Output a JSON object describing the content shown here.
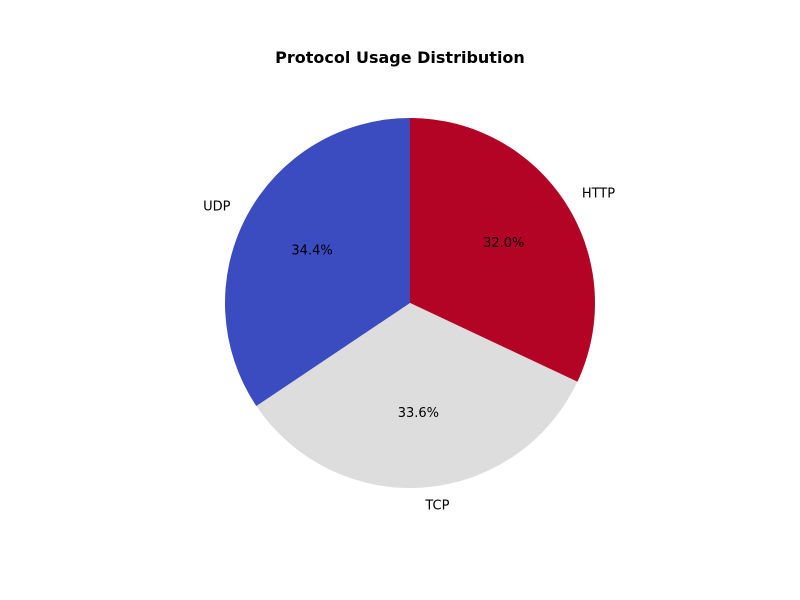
{
  "chart_data": {
    "type": "pie",
    "title": "Protocol Usage Distribution",
    "slices": [
      {
        "label": "HTTP",
        "value": 32.0,
        "pct_label": "32.0%",
        "color": "#b40426"
      },
      {
        "label": "TCP",
        "value": 33.6,
        "pct_label": "33.6%",
        "color": "#dddddd"
      },
      {
        "label": "UDP",
        "value": 34.4,
        "pct_label": "34.4%",
        "color": "#3b4cc0"
      }
    ],
    "start_angle_deg": 90,
    "direction": "clockwise"
  }
}
